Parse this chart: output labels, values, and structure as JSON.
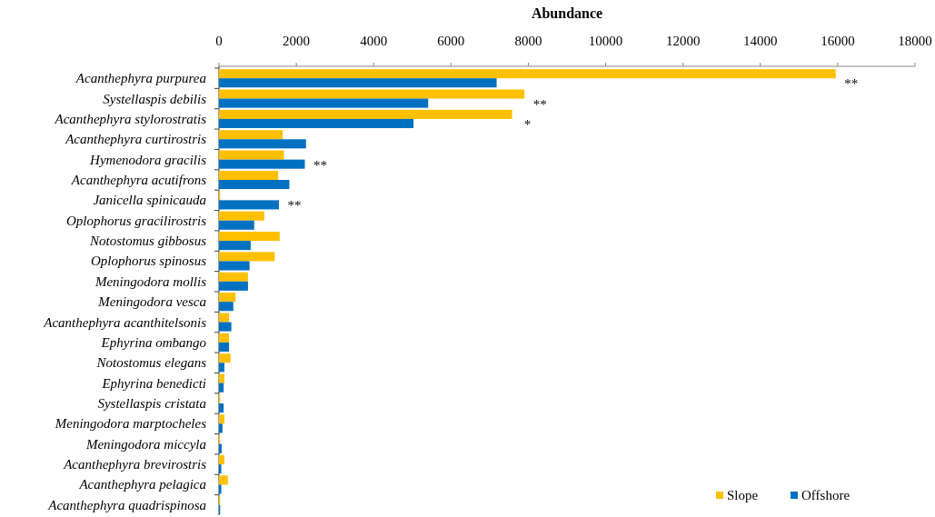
{
  "chart_data": {
    "type": "bar",
    "orientation": "horizontal",
    "xlabel": "Abundance",
    "categories": [
      "Acanthephyra purpurea",
      "Systellaspis debilis",
      "Acanthephyra stylorostratis",
      "Acanthephyra curtirostris",
      "Hymenodora gracilis",
      "Acanthephyra acutifrons",
      "Janicella spinicauda",
      "Oplophorus gracilirostris",
      "Notostomus gibbosus",
      "Oplophorus spinosus",
      "Meningodora mollis",
      "Meningodora vesca",
      "Acanthephyra acanthitelsonis",
      "Ephyrina ombango",
      "Notostomus elegans",
      "Ephyrina benedicti",
      "Systellaspis cristata",
      "Meningodora marptocheles",
      "Meningodora miccyla",
      "Acanthephyra brevirostris",
      "Acanthephyra pelagica",
      "Acanthephyra quadrispinosa"
    ],
    "series": [
      {
        "name": "Slope",
        "color": "#ffc000",
        "values": [
          15950,
          7900,
          7580,
          1650,
          1680,
          1530,
          30,
          1170,
          1570,
          1440,
          750,
          430,
          260,
          260,
          300,
          140,
          30,
          140,
          30,
          140,
          230,
          30
        ]
      },
      {
        "name": "Offshore",
        "color": "#0070c0",
        "values": [
          7180,
          5410,
          5030,
          2250,
          2220,
          1820,
          1550,
          910,
          820,
          790,
          750,
          370,
          320,
          260,
          140,
          120,
          120,
          90,
          70,
          60,
          60,
          30
        ]
      }
    ],
    "xlim": [
      0,
      18000
    ],
    "xticks": [
      0,
      2000,
      4000,
      6000,
      8000,
      10000,
      12000,
      14000,
      16000,
      18000
    ],
    "grid": false,
    "legend": "bottom right",
    "annotations": [
      {
        "text": "**",
        "x": 15950,
        "y": "Acanthephyra purpurea"
      },
      {
        "text": "**",
        "x": 7900,
        "y": "Systellaspis debilis"
      },
      {
        "text": "*",
        "x": 7580,
        "y": "Acanthephyra stylorostratis"
      },
      {
        "text": "**",
        "x": 2220,
        "y": "Hymenodora gracilis"
      },
      {
        "text": "**",
        "x": 1550,
        "y": "Janicella spinicauda"
      }
    ]
  }
}
